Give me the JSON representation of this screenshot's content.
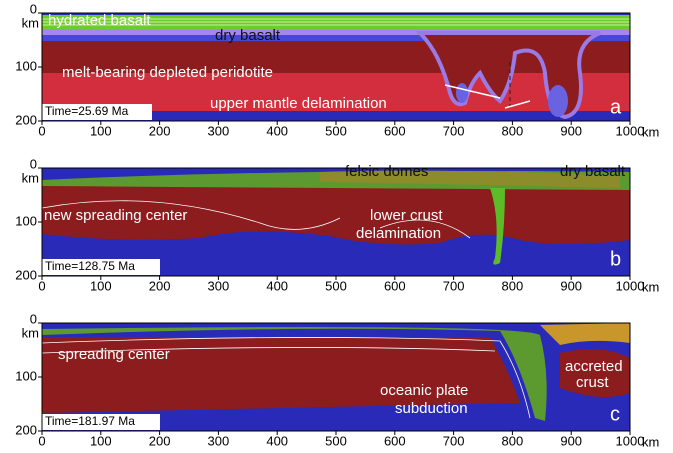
{
  "figure": {
    "x_unit": "km",
    "y_unit": "km",
    "xlim": [
      0,
      1000
    ],
    "ylim": [
      0,
      200
    ],
    "xticks": [
      0,
      100,
      200,
      300,
      400,
      500,
      600,
      700,
      800,
      900,
      1000
    ],
    "yticks": [
      0,
      100,
      200
    ],
    "panels": [
      {
        "letter": "a",
        "time": "Time=25.69 Ma",
        "labels": [
          "hydrated basalt",
          "dry basalt",
          "melt-bearing depleted peridotite",
          "upper mantle delamination"
        ]
      },
      {
        "letter": "b",
        "time": "Time=128.75 Ma",
        "labels": [
          "felsic domes",
          "dry basalt",
          "new spreading center",
          "lower crust",
          "delamination"
        ]
      },
      {
        "letter": "c",
        "time": "Time=181.97 Ma",
        "labels": [
          "spreading center",
          "accreted",
          "crust",
          "oceanic plate",
          "subduction"
        ]
      }
    ]
  }
}
